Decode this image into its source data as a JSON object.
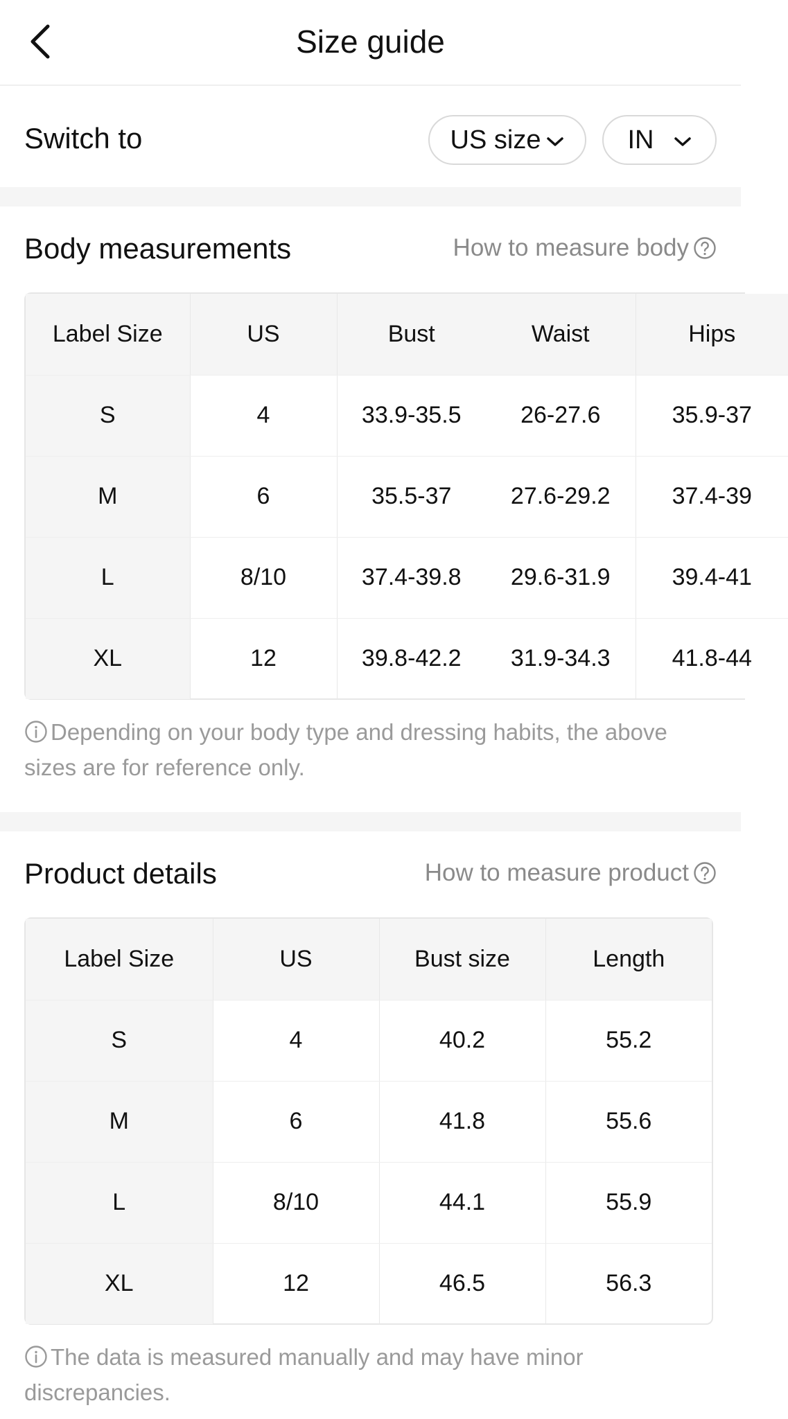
{
  "header": {
    "title": "Size guide"
  },
  "switch": {
    "label": "Switch to",
    "size_system": "US size",
    "unit": "IN"
  },
  "body_section": {
    "title": "Body measurements",
    "help_link": "How to measure body",
    "columns": [
      "Label Size",
      "US",
      "Bust",
      "Waist",
      "Hips"
    ],
    "rows": [
      [
        "S",
        "4",
        "33.9-35.5",
        "26-27.6",
        "35.9-37"
      ],
      [
        "M",
        "6",
        "35.5-37",
        "27.6-29.2",
        "37.4-39"
      ],
      [
        "L",
        "8/10",
        "37.4-39.8",
        "29.6-31.9",
        "39.4-41"
      ],
      [
        "XL",
        "12",
        "39.8-42.2",
        "31.9-34.3",
        "41.8-44"
      ]
    ],
    "note": "Depending on your body type and dressing habits, the above sizes are for reference only."
  },
  "product_section": {
    "title": "Product details",
    "help_link": "How to measure product",
    "columns": [
      "Label Size",
      "US",
      "Bust size",
      "Length"
    ],
    "rows": [
      [
        "S",
        "4",
        "40.2",
        "55.2"
      ],
      [
        "M",
        "6",
        "41.8",
        "55.6"
      ],
      [
        "L",
        "8/10",
        "44.1",
        "55.9"
      ],
      [
        "XL",
        "12",
        "46.5",
        "56.3"
      ]
    ],
    "note": "The data is measured manually and may have minor discrepancies."
  },
  "colors": {
    "text": "#111111",
    "muted": "#8a8a8a",
    "header_fill": "#f5f5f5",
    "border": "#e6e6e6"
  }
}
